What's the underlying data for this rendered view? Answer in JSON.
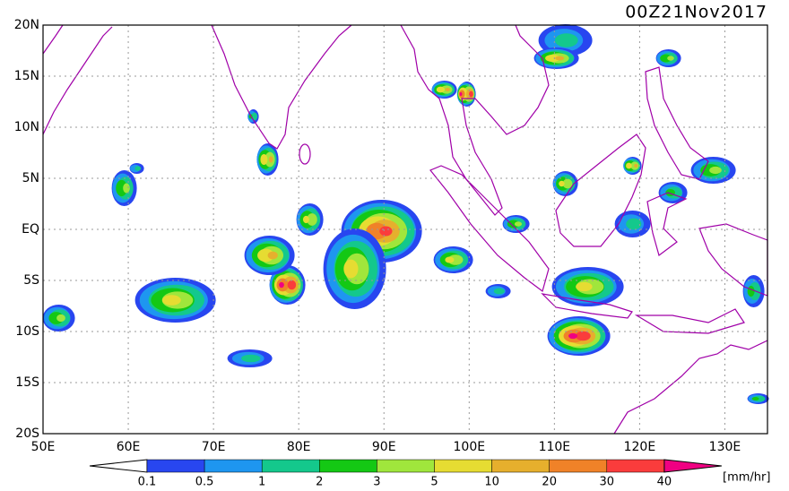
{
  "title": "00Z21Nov2017",
  "lat_labels": [
    "20N",
    "15N",
    "10N",
    "5N",
    "EQ",
    "5S",
    "10S",
    "15S",
    "20S"
  ],
  "lon_labels": [
    "50E",
    "60E",
    "70E",
    "80E",
    "90E",
    "100E",
    "110E",
    "120E",
    "130E"
  ],
  "colorbar": {
    "labels": [
      "0.1",
      "0.5",
      "1",
      "2",
      "3",
      "5",
      "10",
      "20",
      "30",
      "40"
    ],
    "colors": [
      "#ffffff",
      "#2846f0",
      "#1e96f0",
      "#14c88c",
      "#14c814",
      "#a0e63c",
      "#e6dc32",
      "#e6af2d",
      "#f08228",
      "#fa3c3c",
      "#f00082"
    ],
    "unit": "[mm/hr]"
  }
}
